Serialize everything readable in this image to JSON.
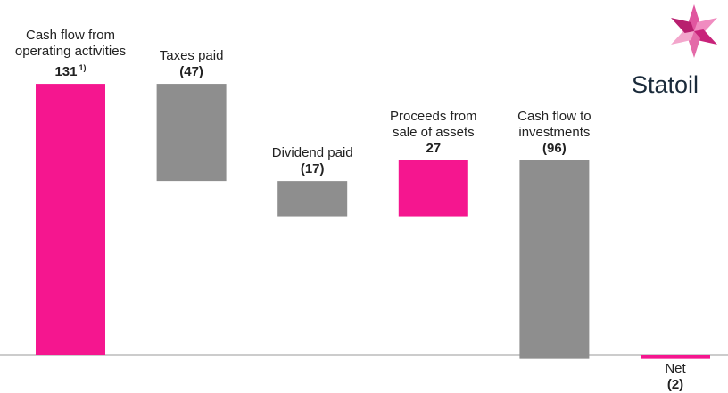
{
  "chart_data": {
    "type": "waterfall",
    "categories": [
      "Cash flow from\noperating activities",
      "Taxes paid",
      "Dividend paid",
      "Proceeds from\nsale of assets",
      "Cash flow to\ninvestments",
      "Net"
    ],
    "values": [
      131,
      -47,
      -17,
      27,
      -96,
      -2
    ],
    "value_labels": [
      "131",
      "(47)",
      "(17)",
      "27",
      "(96)",
      "(2)"
    ],
    "value_label_notes": [
      "1)",
      null,
      null,
      null,
      null,
      null
    ],
    "totals": [
      false,
      false,
      false,
      false,
      false,
      true
    ],
    "colors": [
      "#f5168f",
      "#8e8e8e",
      "#8e8e8e",
      "#f5168f",
      "#8e8e8e",
      "#f5168f"
    ],
    "logo": "Statoil"
  }
}
